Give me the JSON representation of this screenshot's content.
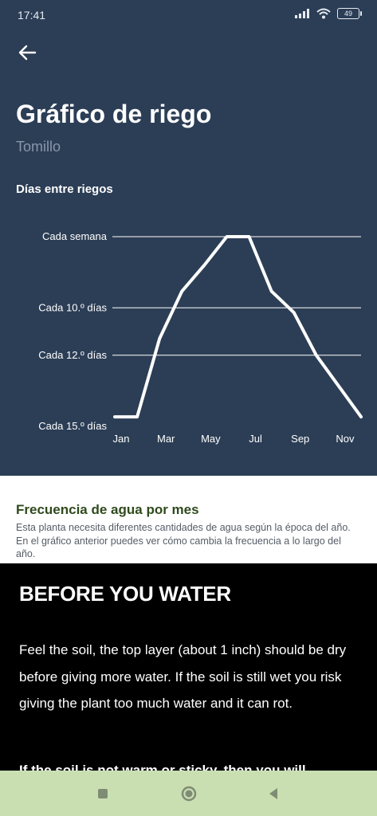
{
  "status_bar": {
    "time": "17:41",
    "battery": "49"
  },
  "header": {
    "title": "Gráfico de riego",
    "subtitle": "Tomillo"
  },
  "chart_heading": "Días entre riegos",
  "chart_data": {
    "type": "line",
    "title": "",
    "xlabel": "",
    "ylabel": "",
    "x_tick_labels": [
      "Jan",
      "Mar",
      "May",
      "Jul",
      "Sep",
      "Nov"
    ],
    "y_tick_labels": [
      "Cada semana",
      "Cada 10.º días",
      "Cada 12.º días",
      "Cada 15.º días"
    ],
    "y_ticks": [
      7,
      10,
      12,
      15
    ],
    "y_inverted": true,
    "grid": true,
    "series": [
      {
        "x": [
          0,
          1,
          2,
          3,
          4,
          5,
          6,
          7,
          8,
          9,
          10,
          11
        ],
        "y": [
          14.6,
          14.6,
          11.3,
          9.3,
          8.2,
          7.0,
          7.0,
          9.3,
          10.2,
          12.0,
          13.3,
          14.6
        ]
      }
    ]
  },
  "info": {
    "title": "Frecuencia de agua por mes",
    "body": "Esta planta necesita diferentes cantidades de agua según la época del año. En el gráfico anterior puedes ver cómo cambia la frecuencia a lo largo del año."
  },
  "tips": {
    "heading": "BEFORE YOU WATER",
    "paragraph": "Feel the soil, the top layer (about 1 inch) should be dry before giving more water. If the soil is still wet you risk giving the plant too much water and it can rot.",
    "next_paragraph": "If the soil is not warm or sticky, then you will"
  },
  "colors": {
    "header_bg": "#2c3e56",
    "nav_bg": "#c9dfb2",
    "section_title": "#2f4a1c"
  },
  "icons": {
    "back": "arrow-left-icon",
    "home": "circle-icon",
    "recents": "square-icon",
    "back_nav": "triangle-icon"
  }
}
